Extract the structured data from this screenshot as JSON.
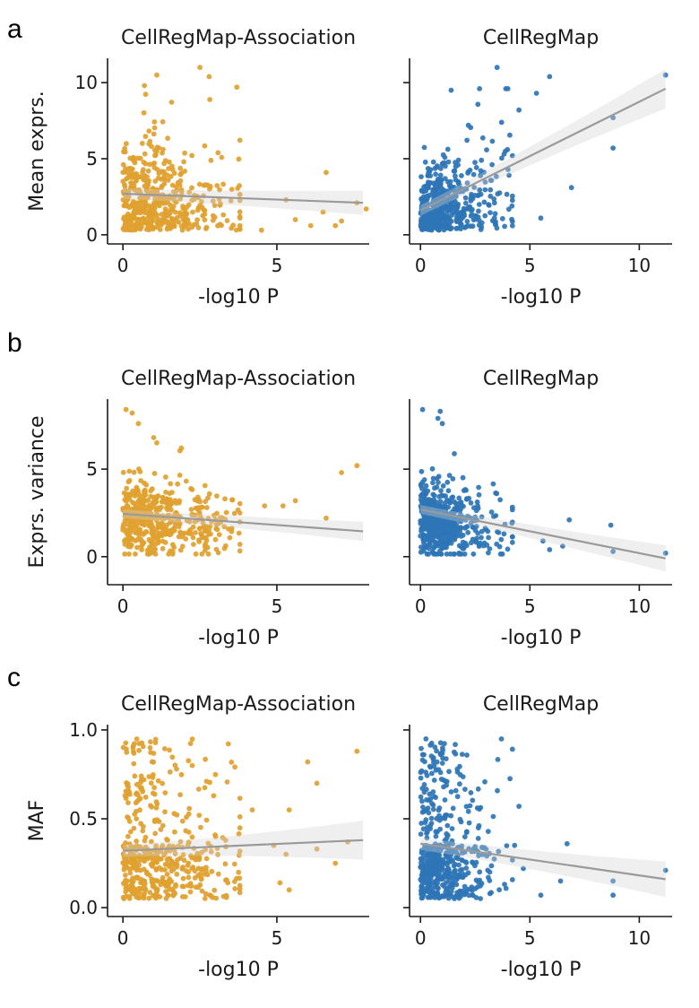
{
  "colors": {
    "association": "#E0A12F",
    "cellregmap": "#2E75B6",
    "regression_line": "#9a9a9a",
    "confidence_band": "#d0d0d0"
  },
  "panel_letters": [
    "a",
    "b",
    "c"
  ],
  "chart_data": [
    {
      "type": "scatter",
      "panel": "a",
      "title": "CellRegMap-Association",
      "xlabel": "-log10 P",
      "ylabel": "Mean exprs.",
      "xlim": [
        -0.5,
        8
      ],
      "ylim": [
        -0.6,
        11.6
      ],
      "xticks": [
        0,
        5
      ],
      "yticks": [
        0,
        5,
        10
      ],
      "ytick_labels": [
        "0",
        "5",
        "10"
      ],
      "color_key": "association",
      "seed": 11,
      "n_points": 480,
      "highlight_points": [
        [
          2.5,
          11.0
        ],
        [
          1.1,
          10.5
        ],
        [
          0.7,
          9.8
        ],
        [
          2.8,
          10.4
        ],
        [
          3.7,
          9.7
        ],
        [
          4.5,
          0.3
        ],
        [
          5.3,
          2.3
        ],
        [
          5.6,
          1.0
        ],
        [
          6.1,
          0.6
        ],
        [
          6.6,
          4.1
        ],
        [
          6.9,
          0.6
        ],
        [
          7.1,
          0.9
        ],
        [
          7.6,
          2.1
        ],
        [
          7.9,
          1.7
        ],
        [
          6.5,
          1.5
        ]
      ],
      "regression": {
        "x0": 0,
        "y0": 2.7,
        "x1": 7.8,
        "y1": 2.1,
        "ci0": 0.35,
        "ci1": 0.8
      }
    },
    {
      "type": "scatter",
      "panel": "a",
      "title": "CellRegMap",
      "xlabel": "-log10 P",
      "ylabel": "",
      "xlim": [
        -0.5,
        11.5
      ],
      "ylim": [
        -0.6,
        11.6
      ],
      "xticks": [
        0,
        5,
        10
      ],
      "yticks": [
        0,
        5,
        10
      ],
      "ytick_labels": [
        "",
        "",
        ""
      ],
      "color_key": "cellregmap",
      "seed": 23,
      "n_points": 520,
      "highlight_points": [
        [
          11.2,
          10.5
        ],
        [
          8.8,
          7.7
        ],
        [
          8.8,
          5.7
        ],
        [
          6.9,
          3.1
        ],
        [
          5.5,
          1.1
        ],
        [
          5.9,
          10.4
        ],
        [
          3.5,
          11.0
        ],
        [
          1.4,
          9.5
        ],
        [
          2.7,
          9.6
        ],
        [
          4.5,
          8.2
        ],
        [
          5.3,
          9.3
        ],
        [
          4.2,
          5.2
        ],
        [
          4.0,
          4.3
        ]
      ],
      "regression": {
        "x0": 0,
        "y0": 1.6,
        "x1": 11.2,
        "y1": 9.6,
        "ci0": 0.35,
        "ci1": 1.3
      }
    },
    {
      "type": "scatter",
      "panel": "b",
      "title": "CellRegMap-Association",
      "xlabel": "-log10 P",
      "ylabel": "Exprs. variance",
      "xlim": [
        -0.5,
        8
      ],
      "ylim": [
        -1.6,
        9.0
      ],
      "xticks": [
        0,
        5
      ],
      "yticks": [
        0,
        5
      ],
      "ytick_labels": [
        "0",
        "5"
      ],
      "color_key": "association",
      "seed": 37,
      "n_points": 480,
      "highlight_points": [
        [
          0.1,
          8.4
        ],
        [
          0.3,
          8.2
        ],
        [
          0.5,
          7.6
        ],
        [
          1.1,
          6.5
        ],
        [
          1.0,
          6.8
        ],
        [
          1.9,
          6.2
        ],
        [
          7.1,
          4.8
        ],
        [
          7.6,
          5.2
        ],
        [
          6.6,
          2.2
        ],
        [
          5.6,
          3.2
        ],
        [
          5.2,
          2.9
        ],
        [
          4.6,
          2.9
        ]
      ],
      "regression": {
        "x0": 0,
        "y0": 2.45,
        "x1": 7.8,
        "y1": 1.45,
        "ci0": 0.25,
        "ci1": 0.55
      }
    },
    {
      "type": "scatter",
      "panel": "b",
      "title": "CellRegMap",
      "xlabel": "-log10 P",
      "ylabel": "",
      "xlim": [
        -0.5,
        11.5
      ],
      "ylim": [
        -1.6,
        9.0
      ],
      "xticks": [
        0,
        5,
        10
      ],
      "yticks": [
        0,
        5
      ],
      "ytick_labels": [
        "",
        ""
      ],
      "color_key": "cellregmap",
      "seed": 53,
      "n_points": 520,
      "highlight_points": [
        [
          0.1,
          8.4
        ],
        [
          0.9,
          8.3
        ],
        [
          0.8,
          7.9
        ],
        [
          1.0,
          7.6
        ],
        [
          11.2,
          0.2
        ],
        [
          8.8,
          0.3
        ],
        [
          8.7,
          1.8
        ],
        [
          6.8,
          2.1
        ],
        [
          6.5,
          0.6
        ],
        [
          5.6,
          0.9
        ],
        [
          5.9,
          0.4
        ]
      ],
      "regression": {
        "x0": 0,
        "y0": 2.7,
        "x1": 11.2,
        "y1": -0.1,
        "ci0": 0.25,
        "ci1": 0.75
      }
    },
    {
      "type": "scatter",
      "panel": "c",
      "title": "CellRegMap-Association",
      "xlabel": "-log10 P",
      "ylabel": "MAF",
      "xlim": [
        -0.5,
        8
      ],
      "ylim": [
        -0.05,
        1.03
      ],
      "xticks": [
        0,
        5
      ],
      "yticks": [
        0.0,
        0.5,
        1.0
      ],
      "ytick_labels": [
        "0.0",
        "0.5",
        "1.0"
      ],
      "color_key": "association",
      "seed": 71,
      "n_points": 480,
      "highlight_points": [
        [
          7.6,
          0.88
        ],
        [
          6.0,
          0.82
        ],
        [
          6.3,
          0.7
        ],
        [
          5.4,
          0.55
        ],
        [
          7.3,
          0.37
        ],
        [
          6.9,
          0.25
        ],
        [
          6.3,
          0.33
        ],
        [
          5.3,
          0.3
        ],
        [
          5.1,
          0.14
        ],
        [
          4.9,
          0.35
        ],
        [
          4.2,
          0.55
        ],
        [
          5.4,
          0.1
        ]
      ],
      "regression": {
        "x0": 0,
        "y0": 0.32,
        "x1": 7.8,
        "y1": 0.38,
        "ci0": 0.035,
        "ci1": 0.11
      }
    },
    {
      "type": "scatter",
      "panel": "c",
      "title": "CellRegMap",
      "xlabel": "-log10 P",
      "ylabel": "",
      "xlim": [
        -0.5,
        11.5
      ],
      "ylim": [
        -0.05,
        1.03
      ],
      "xticks": [
        0,
        5,
        10
      ],
      "yticks": [
        0.0,
        0.5,
        1.0
      ],
      "ytick_labels": [
        "",
        "",
        ""
      ],
      "color_key": "cellregmap",
      "seed": 89,
      "n_points": 520,
      "highlight_points": [
        [
          11.2,
          0.21
        ],
        [
          8.8,
          0.07
        ],
        [
          8.8,
          0.15
        ],
        [
          6.7,
          0.36
        ],
        [
          6.4,
          0.15
        ],
        [
          5.5,
          0.07
        ],
        [
          4.7,
          0.22
        ],
        [
          4.5,
          0.57
        ],
        [
          4.3,
          0.35
        ]
      ],
      "regression": {
        "x0": 0,
        "y0": 0.36,
        "x1": 11.2,
        "y1": 0.16,
        "ci0": 0.035,
        "ci1": 0.1
      }
    }
  ]
}
